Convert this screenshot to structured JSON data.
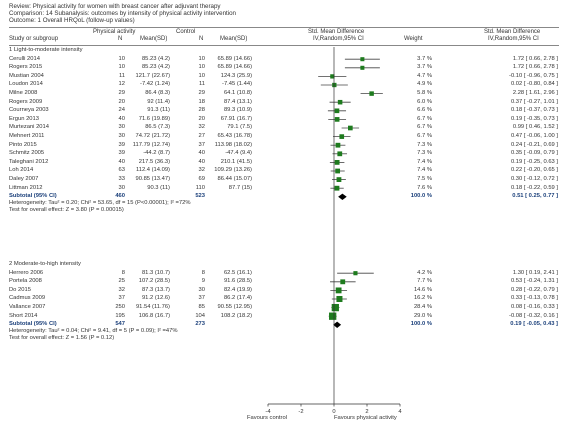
{
  "header": {
    "review": "Review:  Physical activity for women with breast cancer after adjuvant therapy",
    "comparison": "Comparison:  14 Subanalysis: outcomes by intensity of physical activity intervention",
    "outcome": "Outcome:  1 Overall HRQoL (follow-up values)"
  },
  "columns": {
    "study": "Study or subgroup",
    "group_pa": "Physical activity",
    "group_ctrl": "Control",
    "n": "N",
    "mean_sd": "Mean(SD)",
    "smd_line1": "Std. Mean Difference",
    "smd_line2": "IV,Random,95% CI",
    "weight": "Weight",
    "smd_ci_line1": "Std. Mean Difference",
    "smd_ci_line2": "IV,Random,95% CI"
  },
  "colors": {
    "box": "#1e7b1e",
    "diamond": "#000000",
    "line": "#444444"
  },
  "axis": {
    "ticks": [
      "-4",
      "-2",
      "0",
      "2",
      "4"
    ],
    "left_label": "Favours control",
    "right_label": "Favours physical activity"
  },
  "chart_data": {
    "type": "forest",
    "xlim": [
      -4,
      4
    ],
    "subgroups": [
      {
        "title": "1 Light-to-moderate intensity",
        "studies": [
          {
            "study": "Cerulli 2014",
            "pa_n": "10",
            "pa_mean_sd": "85.23 (4.2)",
            "ctrl_n": "10",
            "ctrl_mean_sd": "65.89 (14.66)",
            "weight": "3.7 %",
            "ci_text": "1.72 [ 0.66, 2.78 ]",
            "smd": 1.72,
            "lo": 0.66,
            "hi": 2.78
          },
          {
            "study": "Rogers 2015",
            "pa_n": "10",
            "pa_mean_sd": "85.23 (4.2)",
            "ctrl_n": "10",
            "ctrl_mean_sd": "65.89 (14.66)",
            "weight": "3.7 %",
            "ci_text": "1.72 [ 0.66, 2.78 ]",
            "smd": 1.72,
            "lo": 0.66,
            "hi": 2.78
          },
          {
            "study": "Mustian 2004",
            "pa_n": "11",
            "pa_mean_sd": "121.7 (22.67)",
            "ctrl_n": "10",
            "ctrl_mean_sd": "124.3 (25.9)",
            "weight": "4.7 %",
            "ci_text": "-0.10 [ -0.96, 0.75 ]",
            "smd": -0.1,
            "lo": -0.96,
            "hi": 0.75
          },
          {
            "study": "Loudon 2014",
            "pa_n": "12",
            "pa_mean_sd": "-7.42 (1.24)",
            "ctrl_n": "11",
            "ctrl_mean_sd": "-7.45 (1.44)",
            "weight": "4.9 %",
            "ci_text": "0.02 [ -0.80, 0.84 ]",
            "smd": 0.02,
            "lo": -0.8,
            "hi": 0.84
          },
          {
            "study": "Milne 2008",
            "pa_n": "29",
            "pa_mean_sd": "86.4 (8.3)",
            "ctrl_n": "29",
            "ctrl_mean_sd": "64.1 (10.8)",
            "weight": "5.8 %",
            "ci_text": "2.28 [ 1.61, 2.96 ]",
            "smd": 2.28,
            "lo": 1.61,
            "hi": 2.96
          },
          {
            "study": "Rogers 2009",
            "pa_n": "20",
            "pa_mean_sd": "92 (11.4)",
            "ctrl_n": "18",
            "ctrl_mean_sd": "87.4 (13.1)",
            "weight": "6.0 %",
            "ci_text": "0.37 [ -0.27, 1.01 ]",
            "smd": 0.37,
            "lo": -0.27,
            "hi": 1.01
          },
          {
            "study": "Courneya 2003",
            "pa_n": "24",
            "pa_mean_sd": "91.3 (11)",
            "ctrl_n": "28",
            "ctrl_mean_sd": "89.3 (10.9)",
            "weight": "6.6 %",
            "ci_text": "0.18 [ -0.37, 0.73 ]",
            "smd": 0.18,
            "lo": -0.37,
            "hi": 0.73
          },
          {
            "study": "Ergun 2013",
            "pa_n": "40",
            "pa_mean_sd": "71.6 (19.89)",
            "ctrl_n": "20",
            "ctrl_mean_sd": "67.91 (16.7)",
            "weight": "6.7 %",
            "ci_text": "0.19 [ -0.35, 0.73 ]",
            "smd": 0.19,
            "lo": -0.35,
            "hi": 0.73
          },
          {
            "study": "Murtezani 2014",
            "pa_n": "30",
            "pa_mean_sd": "86.5 (7.3)",
            "ctrl_n": "32",
            "ctrl_mean_sd": "79.1 (7.5)",
            "weight": "6.7 %",
            "ci_text": "0.99 [ 0.46, 1.52 ]",
            "smd": 0.99,
            "lo": 0.46,
            "hi": 1.52
          },
          {
            "study": "Mehnert 2011",
            "pa_n": "30",
            "pa_mean_sd": "74.72 (21.72)",
            "ctrl_n": "27",
            "ctrl_mean_sd": "65.43 (16.78)",
            "weight": "6.7 %",
            "ci_text": "0.47 [ -0.06, 1.00 ]",
            "smd": 0.47,
            "lo": -0.06,
            "hi": 1.0
          },
          {
            "study": "Pinto 2015",
            "pa_n": "39",
            "pa_mean_sd": "117.79 (12.74)",
            "ctrl_n": "37",
            "ctrl_mean_sd": "113.98 (18.02)",
            "weight": "7.3 %",
            "ci_text": "0.24 [ -0.21, 0.69 ]",
            "smd": 0.24,
            "lo": -0.21,
            "hi": 0.69
          },
          {
            "study": "Schmitz 2005",
            "pa_n": "39",
            "pa_mean_sd": "-44.2 (8.7)",
            "ctrl_n": "40",
            "ctrl_mean_sd": "-47.4 (9.4)",
            "weight": "7.3 %",
            "ci_text": "0.35 [ -0.09, 0.79 ]",
            "smd": 0.35,
            "lo": -0.09,
            "hi": 0.79
          },
          {
            "study": "Taleghani 2012",
            "pa_n": "40",
            "pa_mean_sd": "217.5 (36.3)",
            "ctrl_n": "40",
            "ctrl_mean_sd": "210.1 (41.5)",
            "weight": "7.4 %",
            "ci_text": "0.19 [ -0.25, 0.63 ]",
            "smd": 0.19,
            "lo": -0.25,
            "hi": 0.63
          },
          {
            "study": "Loh 2014",
            "pa_n": "63",
            "pa_mean_sd": "112.4 (14.09)",
            "ctrl_n": "32",
            "ctrl_mean_sd": "109.29 (13.26)",
            "weight": "7.4 %",
            "ci_text": "0.22 [ -0.20, 0.65 ]",
            "smd": 0.22,
            "lo": -0.2,
            "hi": 0.65
          },
          {
            "study": "Daley 2007",
            "pa_n": "33",
            "pa_mean_sd": "90.85 (13.47)",
            "ctrl_n": "69",
            "ctrl_mean_sd": "86.44 (15.07)",
            "weight": "7.5 %",
            "ci_text": "0.30 [ -0.12, 0.72 ]",
            "smd": 0.3,
            "lo": -0.12,
            "hi": 0.72
          },
          {
            "study": "Littman 2012",
            "pa_n": "30",
            "pa_mean_sd": "90.3 (11)",
            "ctrl_n": "110",
            "ctrl_mean_sd": "87.7 (15)",
            "weight": "7.6 %",
            "ci_text": "0.18 [ -0.22, 0.59 ]",
            "smd": 0.18,
            "lo": -0.22,
            "hi": 0.59
          }
        ],
        "subtotal": {
          "label": "Subtotal (95% CI)",
          "pa_n": "460",
          "ctrl_n": "523",
          "weight": "100.0 %",
          "ci_text": "0.51 [ 0.25, 0.77 ]",
          "smd": 0.51,
          "lo": 0.25,
          "hi": 0.77
        },
        "heterogeneity": "Heterogeneity: Tau² = 0.20; Chi² = 53.65, df = 15 (P<0.00001); I² =72%",
        "overall_effect": "Test for overall effect: Z = 3.80 (P = 0.00015)"
      },
      {
        "title": "2 Moderate-to-high intensity",
        "studies": [
          {
            "study": "Herrero 2006",
            "pa_n": "8",
            "pa_mean_sd": "81.3 (10.7)",
            "ctrl_n": "8",
            "ctrl_mean_sd": "62.5 (16.1)",
            "weight": "4.2 %",
            "ci_text": "1.30 [ 0.19, 2.41 ]",
            "smd": 1.3,
            "lo": 0.19,
            "hi": 2.41
          },
          {
            "study": "Portela 2008",
            "pa_n": "25",
            "pa_mean_sd": "107.2 (28.5)",
            "ctrl_n": "9",
            "ctrl_mean_sd": "91.6 (28.5)",
            "weight": "7.7 %",
            "ci_text": "0.53 [ -0.24, 1.31 ]",
            "smd": 0.53,
            "lo": -0.24,
            "hi": 1.31
          },
          {
            "study": "Do 2015",
            "pa_n": "32",
            "pa_mean_sd": "87.3 (13.7)",
            "ctrl_n": "30",
            "ctrl_mean_sd": "82.4 (19.9)",
            "weight": "14.6 %",
            "ci_text": "0.28 [ -0.22, 0.79 ]",
            "smd": 0.28,
            "lo": -0.22,
            "hi": 0.79
          },
          {
            "study": "Cadmus 2009",
            "pa_n": "37",
            "pa_mean_sd": "91.2 (12.6)",
            "ctrl_n": "37",
            "ctrl_mean_sd": "86.2 (17.4)",
            "weight": "16.2 %",
            "ci_text": "0.33 [ -0.13, 0.78 ]",
            "smd": 0.33,
            "lo": -0.13,
            "hi": 0.78
          },
          {
            "study": "Vallance 2007",
            "pa_n": "250",
            "pa_mean_sd": "91.54 (11.76)",
            "ctrl_n": "85",
            "ctrl_mean_sd": "90.55 (12.95)",
            "weight": "28.4 %",
            "ci_text": "0.08 [ -0.16, 0.33 ]",
            "smd": 0.08,
            "lo": -0.16,
            "hi": 0.33
          },
          {
            "study": "Short 2014",
            "pa_n": "195",
            "pa_mean_sd": "106.8 (16.7)",
            "ctrl_n": "104",
            "ctrl_mean_sd": "108.2 (18.2)",
            "weight": "29.0 %",
            "ci_text": "-0.08 [ -0.32, 0.16 ]",
            "smd": -0.08,
            "lo": -0.32,
            "hi": 0.16
          }
        ],
        "subtotal": {
          "label": "Subtotal (95% CI)",
          "pa_n": "547",
          "ctrl_n": "273",
          "weight": "100.0 %",
          "ci_text": "0.19 [ -0.05, 0.43 ]",
          "smd": 0.19,
          "lo": -0.05,
          "hi": 0.43
        },
        "heterogeneity": "Heterogeneity: Tau² = 0.04; Chi² = 9.41, df = 5 (P = 0.09); I² =47%",
        "overall_effect": "Test for overall effect: Z = 1.56 (P = 0.12)"
      }
    ]
  }
}
